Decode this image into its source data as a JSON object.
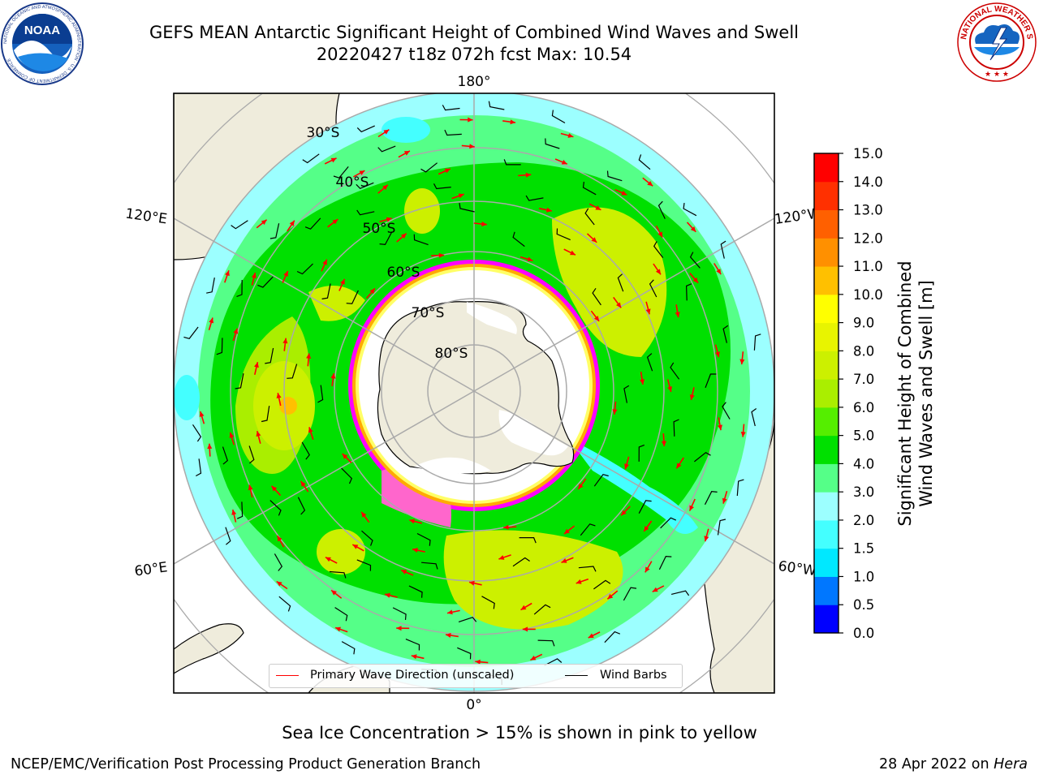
{
  "title": {
    "line1": "GEFS MEAN Antarctic Significant Height of Combined Wind Waves and Swell",
    "line2": "20220427 t18z 072h fcst   Max: 10.54"
  },
  "logos": {
    "left": {
      "name": "noaa-logo",
      "text": "NOAA",
      "ring_text": "NATIONAL OCEANIC AND ATMOSPHERIC ADMINISTRATION · U.S. DEPARTMENT OF COMMERCE"
    },
    "right": {
      "name": "nws-logo",
      "ring_text": "NATIONAL WEATHER SERVICE"
    }
  },
  "map": {
    "projection": "south-polar-stereographic",
    "longitude_labels": {
      "top": "180°",
      "bottom": "0°",
      "left_upper": "120°E",
      "left_lower": "60°E",
      "right_upper": "120°W",
      "right_lower": "60°W"
    },
    "latitude_labels": [
      "30°S",
      "40°S",
      "50°S",
      "60°S",
      "70°S",
      "80°S"
    ],
    "legend": {
      "wave_direction": {
        "label": "Primary Wave Direction (unscaled)",
        "color": "#ff0000"
      },
      "wind_barbs": {
        "label": "Wind Barbs",
        "color": "#000000"
      }
    },
    "land_color": "#efecdc",
    "ice_colors": [
      "#ff00ff",
      "#ff66cc",
      "#ffaa00",
      "#ffff66"
    ]
  },
  "colorbar": {
    "title_line1": "Significant Height of Combined",
    "title_line2": "Wind Waves and Swell [m]",
    "ticks": [
      "0.0",
      "0.5",
      "1.0",
      "1.5",
      "2.0",
      "3.0",
      "4.0",
      "5.0",
      "6.0",
      "7.0",
      "8.0",
      "9.0",
      "10.0",
      "11.0",
      "12.0",
      "13.0",
      "14.0",
      "15.0"
    ],
    "colors": [
      "#0000ff",
      "#0077ff",
      "#00e8ff",
      "#44ffff",
      "#9cffff",
      "#55ff88",
      "#00e000",
      "#55ee00",
      "#aaee00",
      "#ccf000",
      "#e8f400",
      "#ffff00",
      "#ffc000",
      "#ff9000",
      "#ff6000",
      "#ff3000",
      "#ff0000"
    ]
  },
  "footnote": "Sea Ice Concentration > 15% is shown in pink to yellow",
  "credit": {
    "left": "NCEP/EMC/Verification Post Processing Product Generation Branch",
    "right_date": "28 Apr 2022 on ",
    "right_host": "Hera"
  }
}
